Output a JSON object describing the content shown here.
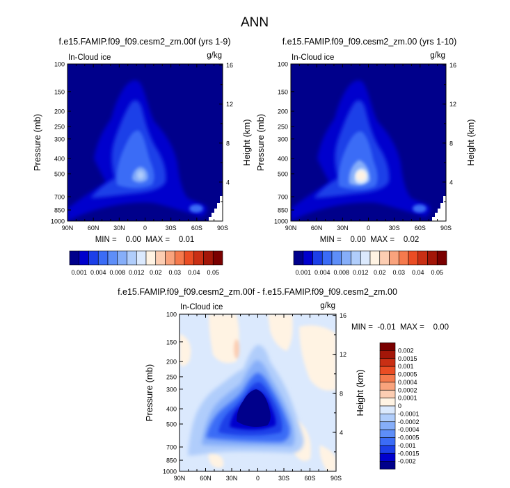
{
  "main_title": "ANN",
  "panels": [
    {
      "title": "f.e15.FAMIP.f09_f09.cesm2_zm.00f (yrs 1-9)",
      "field_label": "In-Cloud ice",
      "units": "g/kg",
      "ylabel": "Pressure (mb)",
      "ylabel_right": "Height (km)",
      "minmax": "MIN =    0.00  MAX =    0.01"
    },
    {
      "title": "f.e15.FAMIP.f09_f09.cesm2_zm.00 (yrs 1-10)",
      "field_label": "In-Cloud ice",
      "units": "g/kg",
      "ylabel": "Pressure (mb)",
      "ylabel_right": "Height (km)",
      "minmax": "MIN =    0.00  MAX =    0.02"
    },
    {
      "title": "f.e15.FAMIP.f09_f09.cesm2_zm.00f - f.e15.FAMIP.f09_f09.cesm2_zm.00",
      "field_label": "In-Cloud ice",
      "units": "g/kg",
      "ylabel": "Pressure (mb)",
      "ylabel_right": "Height (km)",
      "minmax": "MIN =  -0.01  MAX =    0.00"
    }
  ],
  "axes": {
    "x_ticks": [
      "90N",
      "60N",
      "30N",
      "0",
      "30S",
      "60S",
      "90S"
    ],
    "pressure_ticks": [
      "100",
      "150",
      "200",
      "250",
      "300",
      "400",
      "500",
      "700",
      "850",
      "1000"
    ],
    "height_ticks": [
      "16",
      "12",
      "8",
      "4"
    ]
  },
  "colorbar_top": {
    "labels": [
      "0.001",
      "0.004",
      "0.008",
      "0.012",
      "0.02",
      "0.03",
      "0.04",
      "0.05"
    ],
    "colors": [
      "#00008b",
      "#0000cd",
      "#1c3fe8",
      "#3b6cf6",
      "#5e8ef8",
      "#86aef9",
      "#b0cdfb",
      "#dbe9fd",
      "#fff3e3",
      "#fccdb2",
      "#f9a37d",
      "#f57a4d",
      "#ea4d24",
      "#c92f14",
      "#a31608",
      "#7a0000"
    ]
  },
  "colorbar_diff": {
    "labels": [
      "0.002",
      "0.0015",
      "0.001",
      "0.0005",
      "0.0004",
      "0.0002",
      "0.0001",
      "0",
      "-0.0001",
      "-0.0002",
      "-0.0004",
      "-0.0005",
      "-0.001",
      "-0.0015",
      "-0.002"
    ],
    "colors": [
      "#7a0000",
      "#a31608",
      "#c92f14",
      "#ea4d24",
      "#f57a4d",
      "#f9a37d",
      "#fccdb2",
      "#fff3e3",
      "#dbe9fd",
      "#b0cdfb",
      "#86aef9",
      "#5e8ef8",
      "#3b6cf6",
      "#1c3fe8",
      "#0000cd",
      "#00008b"
    ]
  },
  "chart_data": [
    {
      "type": "heatmap",
      "title": "f.e15.FAMIP.f09_f09.cesm2_zm.00f (yrs 1-9)",
      "xlabel": "",
      "ylabel": "Pressure (mb)",
      "x": [
        "90N",
        "60N",
        "30N",
        "0",
        "30S",
        "60S",
        "90S"
      ],
      "ylim": [
        1000,
        100
      ],
      "field": "In-Cloud ice (g/kg)",
      "min": 0.0,
      "max": 0.01
    },
    {
      "type": "heatmap",
      "title": "f.e15.FAMIP.f09_f09.cesm2_zm.00 (yrs 1-10)",
      "xlabel": "",
      "ylabel": "Pressure (mb)",
      "x": [
        "90N",
        "60N",
        "30N",
        "0",
        "30S",
        "60S",
        "90S"
      ],
      "ylim": [
        1000,
        100
      ],
      "field": "In-Cloud ice (g/kg)",
      "min": 0.0,
      "max": 0.02
    },
    {
      "type": "heatmap",
      "title": "f.e15.FAMIP.f09_f09.cesm2_zm.00f - f.e15.FAMIP.f09_f09.cesm2_zm.00",
      "xlabel": "",
      "ylabel": "Pressure (mb)",
      "x": [
        "90N",
        "60N",
        "30N",
        "0",
        "30S",
        "60S",
        "90S"
      ],
      "ylim": [
        1000,
        100
      ],
      "field": "In-Cloud ice difference (g/kg)",
      "min": -0.01,
      "max": 0.0
    }
  ]
}
